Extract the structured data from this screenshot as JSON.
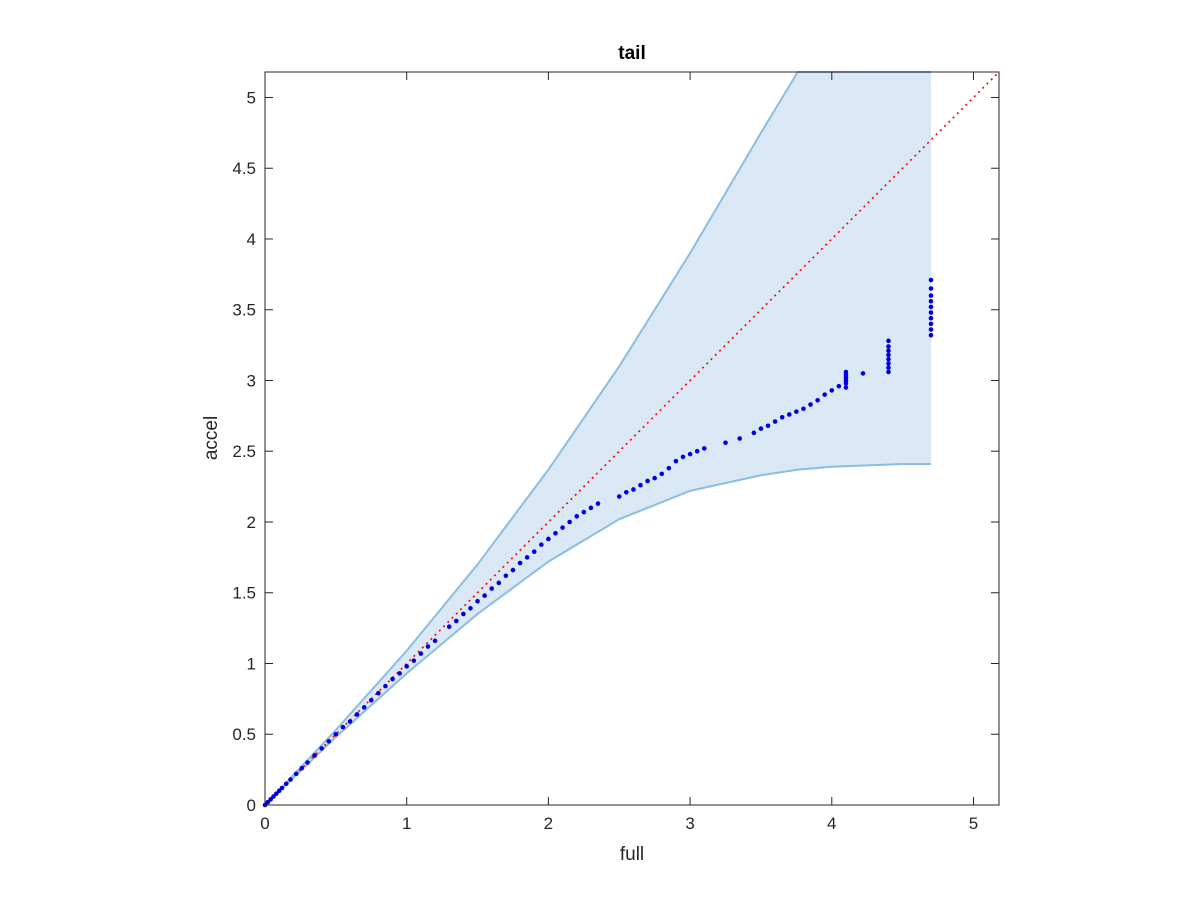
{
  "chart_data": {
    "type": "scatter",
    "title": "tail",
    "xlabel": "full",
    "ylabel": "accel",
    "xlim": [
      0,
      5.18
    ],
    "ylim": [
      0,
      5.18
    ],
    "xticks": [
      0,
      1,
      2,
      3,
      4,
      5
    ],
    "yticks": [
      0,
      0.5,
      1,
      1.5,
      2,
      2.5,
      3,
      3.5,
      4,
      4.5,
      5
    ],
    "xtick_labels": [
      "0",
      "1",
      "2",
      "3",
      "4",
      "5"
    ],
    "ytick_labels": [
      "0",
      "0.5",
      "1",
      "1.5",
      "2",
      "2.5",
      "3",
      "3.5",
      "4",
      "4.5",
      "5"
    ],
    "grid": false,
    "reference_line": {
      "x": [
        0,
        5.18
      ],
      "y": [
        0,
        5.18
      ],
      "style": "dotted"
    },
    "band": {
      "x": [
        0,
        0.5,
        1.0,
        1.5,
        2.0,
        2.5,
        3.0,
        3.5,
        3.76,
        4.0,
        4.5,
        4.7
      ],
      "upper": [
        0,
        0.53,
        1.09,
        1.7,
        2.37,
        3.1,
        3.9,
        4.75,
        5.18,
        5.18,
        5.18,
        5.18
      ],
      "lower": [
        0,
        0.48,
        0.93,
        1.35,
        1.72,
        2.02,
        2.22,
        2.33,
        2.37,
        2.39,
        2.41,
        2.41
      ]
    },
    "series": [
      {
        "x": [
          0,
          0.02,
          0.04,
          0.06,
          0.08,
          0.1,
          0.12,
          0.15,
          0.18,
          0.22,
          0.26,
          0.3,
          0.35,
          0.4,
          0.45,
          0.5,
          0.55,
          0.6,
          0.65,
          0.7,
          0.75,
          0.8,
          0.85,
          0.9,
          0.95,
          1.0,
          1.05,
          1.1,
          1.15,
          1.2,
          1.3,
          1.35,
          1.4,
          1.45,
          1.5,
          1.55,
          1.6,
          1.65,
          1.7,
          1.75,
          1.8,
          1.85,
          1.9,
          1.95,
          2.0,
          2.05,
          2.1,
          2.15,
          2.2,
          2.25,
          2.3,
          2.35,
          2.5,
          2.55,
          2.6,
          2.65,
          2.7,
          2.75,
          2.8,
          2.85,
          2.9,
          2.95,
          3.0,
          3.05,
          3.1,
          3.25,
          3.35,
          3.45,
          3.5,
          3.55,
          3.6,
          3.65,
          3.7,
          3.75,
          3.8,
          3.85,
          3.9,
          3.95,
          4.0,
          4.05,
          4.1,
          4.1,
          4.1,
          4.1,
          4.1,
          4.1,
          4.22,
          4.4,
          4.4,
          4.4,
          4.4,
          4.4,
          4.4,
          4.4,
          4.4,
          4.7,
          4.7,
          4.7,
          4.7,
          4.7,
          4.7,
          4.7,
          4.7,
          4.7,
          4.7
        ],
        "y": [
          0,
          0.02,
          0.04,
          0.06,
          0.08,
          0.1,
          0.12,
          0.15,
          0.18,
          0.22,
          0.26,
          0.3,
          0.35,
          0.4,
          0.45,
          0.5,
          0.55,
          0.59,
          0.64,
          0.69,
          0.74,
          0.79,
          0.84,
          0.89,
          0.93,
          0.98,
          1.02,
          1.07,
          1.12,
          1.16,
          1.26,
          1.3,
          1.35,
          1.39,
          1.44,
          1.48,
          1.53,
          1.57,
          1.62,
          1.66,
          1.71,
          1.75,
          1.79,
          1.84,
          1.88,
          1.92,
          1.96,
          2.0,
          2.04,
          2.07,
          2.1,
          2.13,
          2.18,
          2.21,
          2.23,
          2.26,
          2.29,
          2.31,
          2.34,
          2.38,
          2.43,
          2.46,
          2.48,
          2.5,
          2.52,
          2.56,
          2.59,
          2.63,
          2.66,
          2.68,
          2.71,
          2.74,
          2.76,
          2.78,
          2.8,
          2.83,
          2.86,
          2.9,
          2.93,
          2.96,
          2.95,
          2.98,
          3.0,
          3.02,
          3.04,
          3.06,
          3.05,
          3.06,
          3.09,
          3.12,
          3.15,
          3.18,
          3.21,
          3.24,
          3.28,
          3.32,
          3.36,
          3.4,
          3.44,
          3.48,
          3.52,
          3.56,
          3.6,
          3.65,
          3.71
        ]
      }
    ],
    "colors": {
      "points": "#0000dd",
      "band_fill": "#d9e8f4",
      "band_edge": "#8bbde0",
      "reference_line": "#ff0000",
      "axes": "#262626"
    }
  }
}
